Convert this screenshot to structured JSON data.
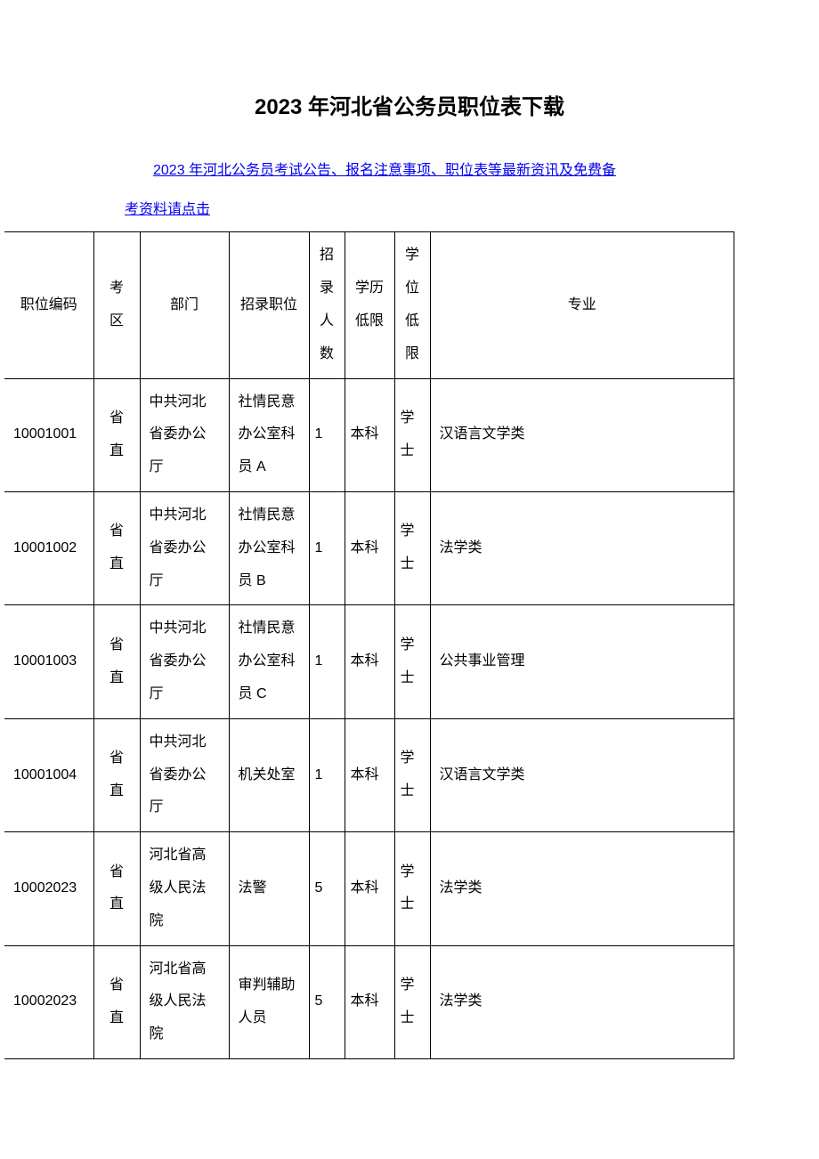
{
  "title": "2023 年河北省公务员职位表下载",
  "link_line1": "2023 年河北公务员考试公告、报名注意事项、职位表等最新资讯及免费备",
  "link_line2": "考资料请点击",
  "table": {
    "columns": [
      "职位编码",
      "考区",
      "部门",
      "招录职位",
      "招录人数",
      "学历低限",
      "学位低限",
      "专业"
    ],
    "rows": [
      [
        "10001001",
        "省直",
        "中共河北省委办公厅",
        "社情民意办公室科员 A",
        "1",
        "本科",
        "学士",
        "汉语言文学类"
      ],
      [
        "10001002",
        "省直",
        "中共河北省委办公厅",
        "社情民意办公室科员 B",
        "1",
        "本科",
        "学士",
        "法学类"
      ],
      [
        "10001003",
        "省直",
        "中共河北省委办公厅",
        "社情民意办公室科员 C",
        "1",
        "本科",
        "学士",
        "公共事业管理"
      ],
      [
        "10001004",
        "省直",
        "中共河北省委办公厅",
        "机关处室",
        "1",
        "本科",
        "学士",
        "汉语言文学类"
      ],
      [
        "10002023",
        "省直",
        "河北省高级人民法院",
        "法警",
        "5",
        "本科",
        "学士",
        "法学类"
      ],
      [
        "10002023",
        "省直",
        "河北省高级人民法院",
        "审判辅助人员",
        "5",
        "本科",
        "学士",
        "法学类"
      ]
    ]
  },
  "colors": {
    "text": "#000000",
    "link": "#0000ee",
    "border": "#000000",
    "background": "#ffffff"
  }
}
